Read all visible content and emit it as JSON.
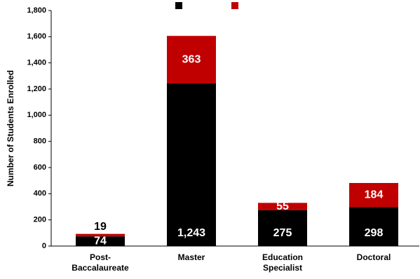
{
  "chart_data": {
    "type": "stacked-bar",
    "y_label": "Number of Students Enrolled",
    "categories": [
      [
        "Post-",
        "Baccalaureate"
      ],
      [
        "Master"
      ],
      [
        "Education",
        "Specialist"
      ],
      [
        "Doctoral"
      ]
    ],
    "series": [
      {
        "color": "#000000",
        "values": [
          74,
          1243,
          275,
          298
        ],
        "value_labels": [
          "74",
          "1,243",
          "275",
          "298"
        ]
      },
      {
        "color": "#c00000",
        "values": [
          19,
          363,
          55,
          184
        ]
      }
    ],
    "ylim": [
      0,
      1800
    ],
    "yticks": [
      0,
      200,
      400,
      600,
      800,
      {
        "value": 1000,
        "label": "1,000"
      },
      {
        "value": 1200,
        "label": "1,200"
      },
      {
        "value": 1400,
        "label": "1,400"
      },
      {
        "value": 1600,
        "label": "1,600"
      },
      {
        "value": 1800,
        "label": "1,800"
      }
    ]
  }
}
